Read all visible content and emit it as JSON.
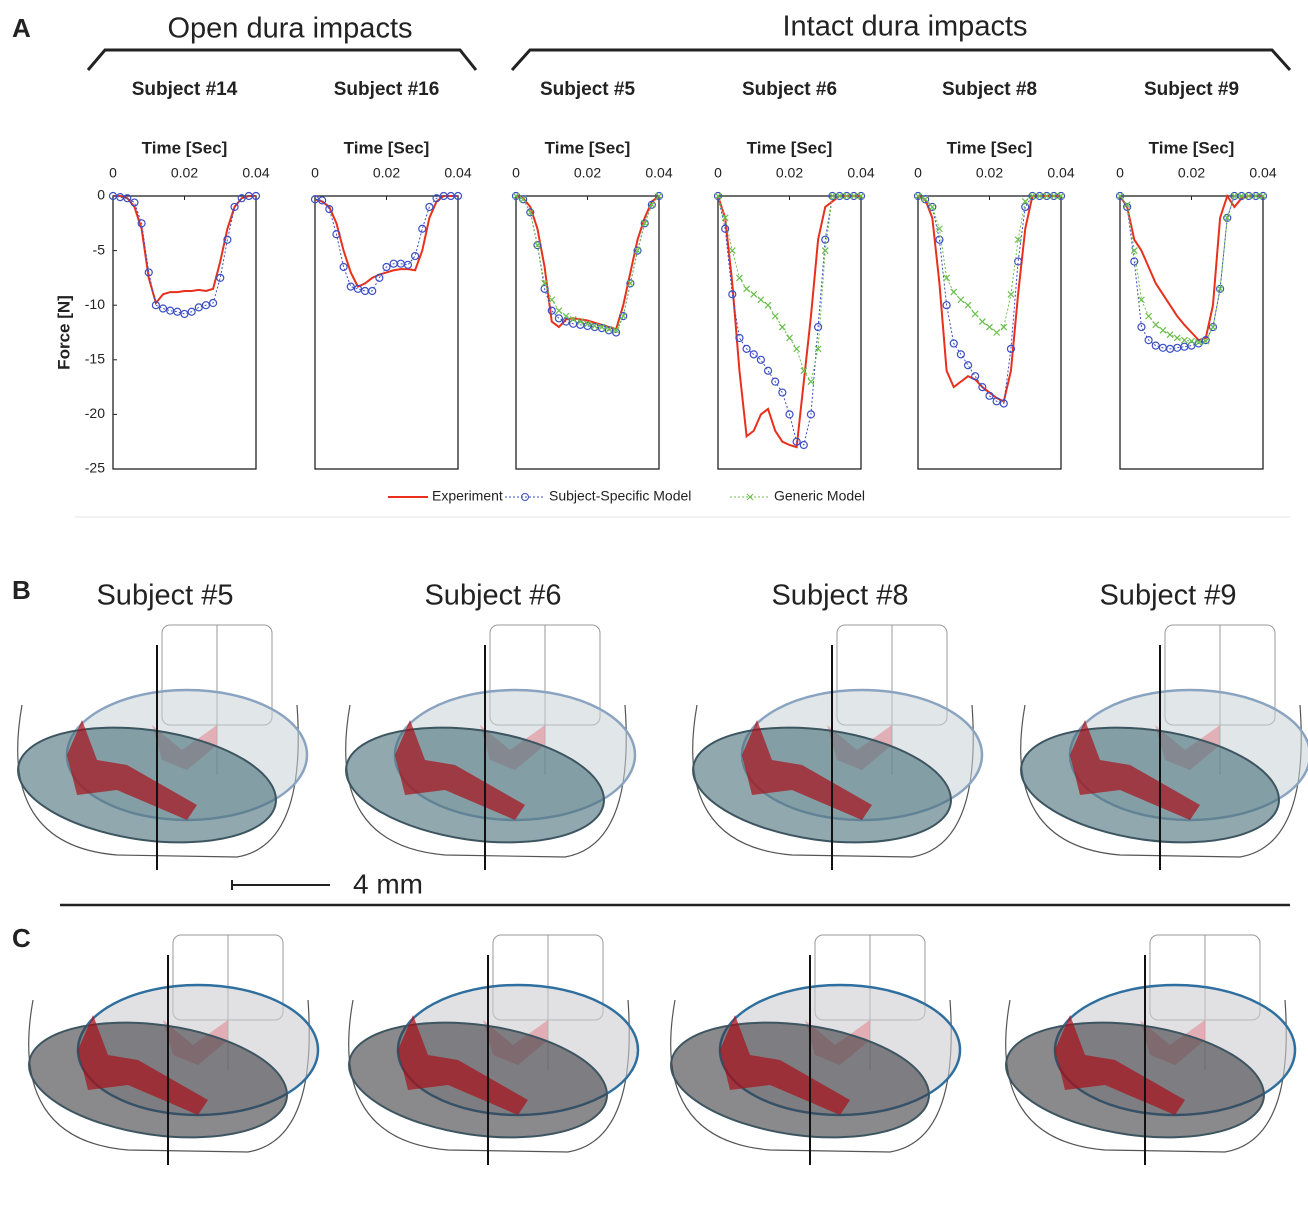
{
  "panel_labels": [
    "A",
    "B",
    "C"
  ],
  "groups": [
    "Open dura impacts",
    "Intact dura impacts"
  ],
  "chart_data": [
    {
      "type": "line",
      "title": "Subject #14",
      "xlabel": "Time [Sec]",
      "ylabel": "Force [N]",
      "xlim": [
        0,
        0.04
      ],
      "xticks": [
        0,
        0.02,
        0.04
      ],
      "ylim": [
        -25,
        0
      ],
      "yticks": [
        0,
        -5,
        -10,
        -15,
        -20,
        -25
      ],
      "x": [
        0,
        0.002,
        0.004,
        0.006,
        0.008,
        0.01,
        0.012,
        0.014,
        0.016,
        0.018,
        0.02,
        0.022,
        0.024,
        0.026,
        0.028,
        0.03,
        0.032,
        0.034,
        0.036,
        0.038,
        0.04
      ],
      "series": [
        {
          "color": "#e8301c",
          "values": [
            0,
            0,
            -0.2,
            -1,
            -3,
            -7.5,
            -9.8,
            -9,
            -8.8,
            -8.8,
            -8.7,
            -8.7,
            -8.6,
            -8.7,
            -8.5,
            -6,
            -3,
            -1,
            -0.2,
            0,
            0
          ]
        },
        {
          "color": "#3b4fc4",
          "values": [
            0,
            -0.1,
            -0.2,
            -0.6,
            -2.5,
            -7,
            -10,
            -10.3,
            -10.5,
            -10.6,
            -10.8,
            -10.6,
            -10.2,
            -10,
            -9.8,
            -7.5,
            -4,
            -1,
            -0.2,
            0,
            0
          ]
        }
      ]
    },
    {
      "type": "line",
      "title": "Subject #16",
      "xlabel": "Time [Sec]",
      "xlim": [
        0,
        0.04
      ],
      "xticks": [
        0,
        0.02,
        0.04
      ],
      "ylim": [
        -25,
        0
      ],
      "x": [
        0,
        0.002,
        0.004,
        0.006,
        0.008,
        0.01,
        0.012,
        0.014,
        0.016,
        0.018,
        0.02,
        0.022,
        0.024,
        0.026,
        0.028,
        0.03,
        0.032,
        0.034,
        0.036,
        0.038,
        0.04
      ],
      "series": [
        {
          "color": "#e8301c",
          "values": [
            -0.3,
            -0.5,
            -1,
            -2.5,
            -5,
            -7,
            -8.3,
            -8,
            -7.5,
            -7.2,
            -7,
            -6.8,
            -6.7,
            -6.7,
            -6.8,
            -5,
            -2,
            -0.5,
            0,
            0,
            0
          ]
        },
        {
          "color": "#3b4fc4",
          "values": [
            -0.3,
            -0.4,
            -1.2,
            -3.5,
            -6.5,
            -8.3,
            -8.5,
            -8.7,
            -8.7,
            -7.5,
            -6.5,
            -6.2,
            -6.2,
            -6.3,
            -5.5,
            -3,
            -1,
            -0.2,
            0,
            0,
            0
          ]
        }
      ]
    },
    {
      "type": "line",
      "title": "Subject #5",
      "xlabel": "Time [Sec]",
      "xlim": [
        0,
        0.04
      ],
      "xticks": [
        0,
        0.02,
        0.04
      ],
      "ylim": [
        -25,
        0
      ],
      "x": [
        0,
        0.002,
        0.004,
        0.006,
        0.008,
        0.01,
        0.012,
        0.014,
        0.016,
        0.018,
        0.02,
        0.022,
        0.024,
        0.026,
        0.028,
        0.03,
        0.032,
        0.034,
        0.036,
        0.038,
        0.04
      ],
      "series": [
        {
          "color": "#e8301c",
          "values": [
            0,
            -0.2,
            -1,
            -3,
            -6.5,
            -11.5,
            -12,
            -11.3,
            -11.2,
            -11.3,
            -11.4,
            -11.6,
            -11.8,
            -12,
            -12.2,
            -10,
            -7,
            -4,
            -2,
            -0.5,
            0
          ]
        },
        {
          "color": "#3b4fc4",
          "values": [
            0,
            -0.3,
            -1.5,
            -4.5,
            -8.5,
            -10.5,
            -11.2,
            -11.5,
            -11.7,
            -11.8,
            -11.9,
            -12,
            -12.1,
            -12.3,
            -12.5,
            -11,
            -8,
            -5,
            -2.5,
            -0.8,
            0
          ]
        },
        {
          "color": "#6abf4b",
          "values": [
            0,
            -0.3,
            -1.5,
            -4.5,
            -8,
            -9.5,
            -10.5,
            -11,
            -11.3,
            -11.5,
            -11.7,
            -11.9,
            -12,
            -12.2,
            -12.3,
            -11,
            -8,
            -5,
            -2.5,
            -0.8,
            0
          ]
        }
      ]
    },
    {
      "type": "line",
      "title": "Subject #6",
      "xlabel": "Time [Sec]",
      "xlim": [
        0,
        0.04
      ],
      "xticks": [
        0,
        0.02,
        0.04
      ],
      "ylim": [
        -25,
        0
      ],
      "x": [
        0,
        0.002,
        0.004,
        0.006,
        0.008,
        0.01,
        0.012,
        0.014,
        0.016,
        0.018,
        0.02,
        0.022,
        0.024,
        0.026,
        0.028,
        0.03,
        0.032,
        0.034,
        0.036,
        0.038,
        0.04
      ],
      "series": [
        {
          "color": "#e8301c",
          "values": [
            0,
            -2,
            -8,
            -16,
            -22,
            -21.5,
            -20,
            -19.5,
            -21.5,
            -22.5,
            -22.8,
            -23,
            -17,
            -11,
            -4,
            -1,
            -0.5,
            0,
            0,
            0,
            0
          ]
        },
        {
          "color": "#3b4fc4",
          "values": [
            0,
            -3,
            -9,
            -13,
            -14,
            -14.5,
            -15,
            -16,
            -17,
            -18,
            -20,
            -22.5,
            -22.8,
            -20,
            -12,
            -4,
            0,
            0,
            0,
            0,
            0
          ]
        },
        {
          "color": "#6abf4b",
          "values": [
            0,
            -2,
            -5,
            -7.5,
            -8.5,
            -9,
            -9.5,
            -10,
            -11,
            -12,
            -13,
            -14,
            -16,
            -17,
            -14,
            -5,
            0,
            0,
            0,
            0,
            0
          ]
        }
      ]
    },
    {
      "type": "line",
      "title": "Subject #8",
      "xlabel": "Time [Sec]",
      "xlim": [
        0,
        0.04
      ],
      "xticks": [
        0,
        0.02,
        0.04
      ],
      "ylim": [
        -25,
        0
      ],
      "x": [
        0,
        0.002,
        0.004,
        0.006,
        0.008,
        0.01,
        0.012,
        0.014,
        0.016,
        0.018,
        0.02,
        0.022,
        0.024,
        0.026,
        0.028,
        0.03,
        0.032,
        0.034,
        0.036,
        0.038,
        0.04
      ],
      "series": [
        {
          "color": "#e8301c",
          "values": [
            0,
            -0.3,
            -2,
            -8,
            -16,
            -17.5,
            -17,
            -16.5,
            -16.8,
            -17.5,
            -18,
            -18.5,
            -18.8,
            -16,
            -9,
            -3,
            0,
            0,
            0,
            0,
            0
          ]
        },
        {
          "color": "#3b4fc4",
          "values": [
            0,
            -0.3,
            -1,
            -4,
            -10,
            -13.5,
            -14.5,
            -15.5,
            -16.5,
            -17.5,
            -18.3,
            -18.8,
            -19,
            -14,
            -6,
            -1,
            0,
            0,
            0,
            0,
            0
          ]
        },
        {
          "color": "#6abf4b",
          "values": [
            0,
            -0.3,
            -1,
            -3,
            -7.5,
            -8.8,
            -9.5,
            -10,
            -10.8,
            -11.5,
            -12,
            -12.5,
            -12,
            -9,
            -4,
            -0.5,
            0,
            0,
            0,
            0,
            0
          ]
        }
      ]
    },
    {
      "type": "line",
      "title": "Subject #9",
      "xlabel": "Time [Sec]",
      "xlim": [
        0,
        0.04
      ],
      "xticks": [
        0,
        0.02,
        0.04
      ],
      "ylim": [
        -25,
        0
      ],
      "x": [
        0,
        0.002,
        0.004,
        0.006,
        0.008,
        0.01,
        0.012,
        0.014,
        0.016,
        0.018,
        0.02,
        0.022,
        0.024,
        0.026,
        0.028,
        0.03,
        0.032,
        0.034,
        0.036,
        0.038,
        0.04
      ],
      "series": [
        {
          "name": "Experiment",
          "color": "#e8301c",
          "values": [
            0,
            -1,
            -4,
            -5,
            -6.5,
            -8,
            -9,
            -10,
            -11,
            -11.8,
            -12.5,
            -13.2,
            -13,
            -10,
            -2,
            0,
            -1,
            -0.2,
            0,
            0,
            0
          ]
        },
        {
          "name": "Subject-Specific Model",
          "color": "#3b4fc4",
          "values": [
            0,
            -1,
            -6,
            -12,
            -13.2,
            -13.7,
            -13.9,
            -14,
            -13.9,
            -13.8,
            -13.7,
            -13.5,
            -13.2,
            -12,
            -8.5,
            -2,
            0,
            0,
            0,
            0,
            0
          ]
        },
        {
          "name": "Generic Model",
          "color": "#6abf4b",
          "values": [
            0,
            -0.8,
            -5,
            -9.5,
            -11,
            -11.8,
            -12.3,
            -12.7,
            -13,
            -13.2,
            -13.3,
            -13.4,
            -13.3,
            -12,
            -8.5,
            -2,
            0,
            0,
            0,
            0,
            0
          ]
        }
      ]
    }
  ],
  "panel_b": {
    "subjects": [
      "Subject #5",
      "Subject #6",
      "Subject #8",
      "Subject #9"
    ],
    "scale_label": "4 mm"
  }
}
